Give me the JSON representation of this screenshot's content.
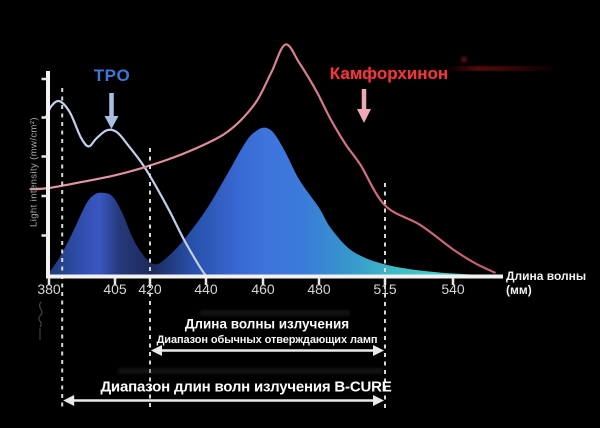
{
  "series_labels": {
    "tpo": "TPO",
    "camphorquinone": "Камфорхинон"
  },
  "axes": {
    "y_label": "Light intensity (mw/cm²)",
    "x_label": "Длина волны (мм)",
    "x_ticks": [
      "380",
      "405",
      "420",
      "440",
      "460",
      "480",
      "515",
      "540"
    ]
  },
  "annotations": {
    "emission_title": "Длина волны излучения",
    "conventional_range_label": "Диапазон обычных отверждающих ламп",
    "bcure_range_label": "Диапазон длин волн излучения B-CURE"
  },
  "colors": {
    "background": "#000000",
    "axis": "#f2f2f2",
    "tpo_label": "#3b79d6",
    "tpo_curve": "#c2cfec",
    "tpo_arrow": "#a9bfe0",
    "camphorquinone_label": "#e23d3f",
    "camphorquinone_curve": "#d4818d",
    "camphorquinone_arrow": "#edaab6",
    "emission_fill_blue": "#3e74dc",
    "emission_fill_teal": "#43cbc9"
  },
  "chart_data": {
    "type": "area",
    "title": "",
    "xlabel": "Длина волны (мм)",
    "ylabel": "Light intensity (mw/cm²)",
    "x_tick_values": [
      380,
      405,
      420,
      440,
      460,
      480,
      515,
      540
    ],
    "x_axis_nonlinear": true,
    "ylim": [
      0,
      100
    ],
    "grid": false,
    "legend": "none",
    "series": [
      {
        "name": "TPO",
        "kind": "line",
        "color": "#c2cfec",
        "points_nm_intensity": [
          [
            379,
            69
          ],
          [
            381,
            73.5
          ],
          [
            384,
            75.5
          ],
          [
            388,
            70.5
          ],
          [
            392,
            60
          ],
          [
            395,
            56
          ],
          [
            398,
            59.5
          ],
          [
            402,
            63
          ],
          [
            406,
            62
          ],
          [
            411,
            56
          ],
          [
            417,
            48
          ],
          [
            422,
            39
          ],
          [
            427,
            28
          ],
          [
            432,
            16
          ],
          [
            437,
            5.5
          ],
          [
            440,
            0
          ]
        ]
      },
      {
        "name": "Камфорхинон",
        "kind": "line",
        "color": "#d4818d",
        "points_nm_intensity": [
          [
            373,
            37.5
          ],
          [
            380,
            38
          ],
          [
            392,
            40.5
          ],
          [
            405,
            43.5
          ],
          [
            416,
            46.5
          ],
          [
            428,
            51
          ],
          [
            438,
            56
          ],
          [
            446,
            61
          ],
          [
            452,
            67
          ],
          [
            458,
            76
          ],
          [
            463,
            88
          ],
          [
            468,
            100
          ],
          [
            473,
            92
          ],
          [
            479,
            80
          ],
          [
            486,
            68
          ],
          [
            494,
            57
          ],
          [
            502,
            48
          ],
          [
            515,
            30.5
          ],
          [
            528,
            22
          ],
          [
            540,
            11.5
          ],
          [
            548,
            5.5
          ],
          [
            555,
            1.5
          ]
        ]
      },
      {
        "name": "emission-spectrum",
        "kind": "area",
        "color": "gradient-blue-teal",
        "points_nm_intensity": [
          [
            379,
            0
          ],
          [
            384,
            8
          ],
          [
            389,
            19
          ],
          [
            394,
            31
          ],
          [
            397,
            35
          ],
          [
            400,
            36
          ],
          [
            404,
            34.5
          ],
          [
            408,
            27.5
          ],
          [
            413,
            15.5
          ],
          [
            418,
            8
          ],
          [
            422,
            5
          ],
          [
            426,
            8
          ],
          [
            432,
            15.5
          ],
          [
            440,
            28.5
          ],
          [
            447,
            43
          ],
          [
            454,
            58
          ],
          [
            458,
            63
          ],
          [
            461,
            64
          ],
          [
            464,
            61.5
          ],
          [
            468,
            53.5
          ],
          [
            473,
            41.5
          ],
          [
            480,
            29.5
          ],
          [
            486,
            21
          ],
          [
            495,
            12.5
          ],
          [
            504,
            8
          ],
          [
            515,
            5
          ],
          [
            524,
            3
          ],
          [
            535,
            1.5
          ],
          [
            546,
            0.7
          ],
          [
            558,
            0
          ]
        ]
      }
    ],
    "dashed_lines_nm": [
      385,
      420,
      515
    ],
    "ranges": [
      {
        "label": "Диапазон обычных отверждающих ламп",
        "from_nm": 420,
        "to_nm": 515
      },
      {
        "label": "Диапазон длин волн излучения B-CURE",
        "from_nm": 385,
        "to_nm": 515
      }
    ]
  }
}
